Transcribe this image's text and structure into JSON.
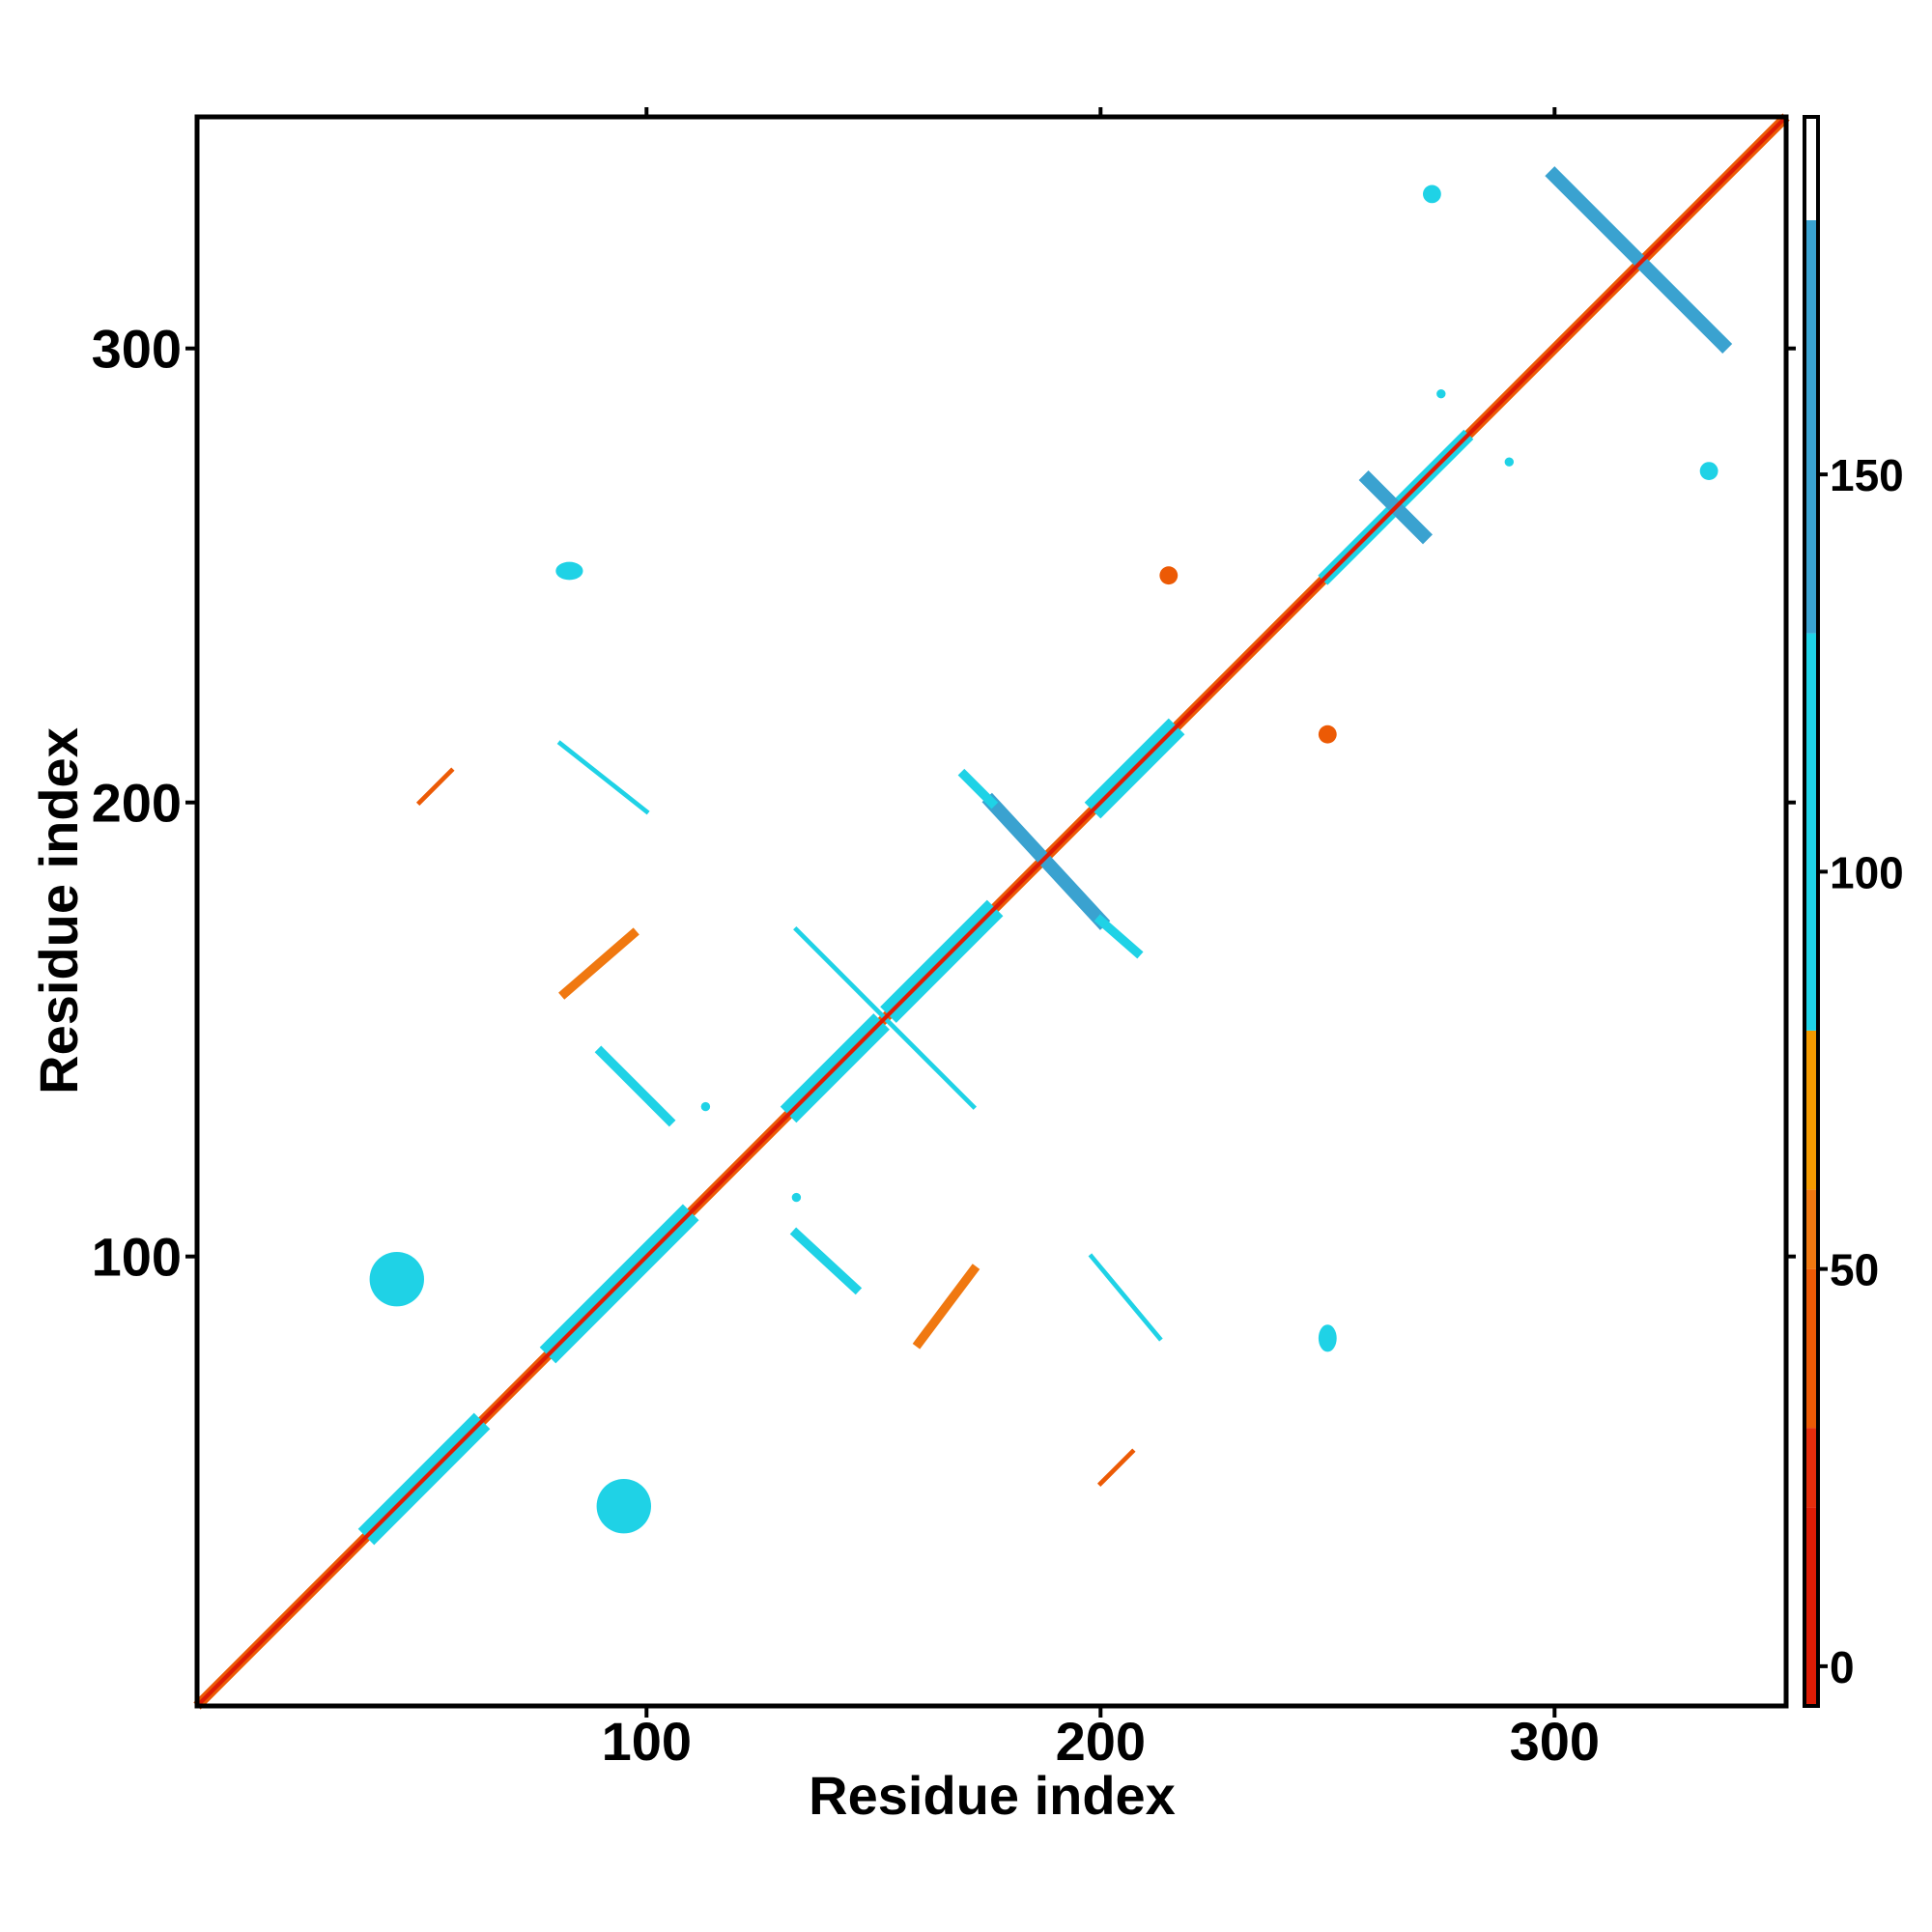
{
  "chart_data": {
    "type": "heatmap",
    "title": "",
    "xlabel": "Residue index",
    "ylabel": "Residue index",
    "xlim": [
      1,
      351
    ],
    "ylim": [
      1,
      351
    ],
    "x_ticks": [
      100,
      200,
      300
    ],
    "y_ticks": [
      100,
      200,
      300
    ],
    "grid": false,
    "colorbar": {
      "ticks": [
        0,
        50,
        100,
        150
      ],
      "range": [
        -5,
        195
      ],
      "bands": [
        {
          "from": -5,
          "to": 20,
          "color": "#dd1c05"
        },
        {
          "from": 20,
          "to": 30,
          "color": "#e52d0c"
        },
        {
          "from": 30,
          "to": 50,
          "color": "#ec5a05"
        },
        {
          "from": 50,
          "to": 60,
          "color": "#f07810"
        },
        {
          "from": 60,
          "to": 80,
          "color": "#f39a00"
        },
        {
          "from": 80,
          "to": 130,
          "color": "#1fd2e6"
        },
        {
          "from": 130,
          "to": 182,
          "color": "#3aa2d0"
        },
        {
          "from": 182,
          "to": 195,
          "color": "#ffffff"
        }
      ]
    },
    "diagonal": {
      "from": 1,
      "to": 351,
      "value": 40
    },
    "segments": [
      {
        "x0": 40,
        "y0": 40,
        "x1": 62,
        "y1": 62,
        "width": 5,
        "value": 110
      },
      {
        "x0": 80,
        "y0": 80,
        "x1": 108,
        "y1": 108,
        "width": 5,
        "value": 110
      },
      {
        "x0": 133,
        "y0": 133,
        "x1": 150,
        "y1": 150,
        "width": 5,
        "value": 110
      },
      {
        "x0": 155,
        "y0": 155,
        "x1": 175,
        "y1": 175,
        "width": 5,
        "value": 110
      },
      {
        "x0": 200,
        "y0": 200,
        "x1": 215,
        "y1": 215,
        "width": 5,
        "value": 110
      },
      {
        "x0": 250,
        "y0": 250,
        "x1": 280,
        "y1": 280,
        "width": 3,
        "value": 110
      },
      {
        "x0": 176,
        "y0": 200,
        "x1": 200,
        "y1": 174,
        "width": 3,
        "value": 150
      },
      {
        "x0": 170,
        "y0": 206,
        "x1": 176,
        "y1": 200,
        "width": 2,
        "value": 110
      },
      {
        "x0": 200,
        "y0": 174,
        "x1": 208,
        "y1": 167,
        "width": 2,
        "value": 110
      },
      {
        "x0": 300,
        "y0": 338,
        "x1": 337,
        "y1": 301,
        "width": 3,
        "value": 150
      },
      {
        "x0": 259,
        "y0": 271,
        "x1": 271,
        "y1": 259,
        "width": 3,
        "value": 130
      },
      {
        "x0": 133,
        "y0": 172,
        "x1": 172,
        "y1": 133,
        "width": 1,
        "value": 110
      },
      {
        "x0": 81,
        "y0": 213,
        "x1": 100,
        "y1": 198,
        "width": 1,
        "value": 110
      },
      {
        "x0": 90,
        "y0": 145,
        "x1": 105,
        "y1": 130,
        "width": 2,
        "value": 110
      },
      {
        "x0": 133,
        "y0": 105,
        "x1": 146,
        "y1": 93,
        "width": 2,
        "value": 110
      },
      {
        "x0": 198,
        "y0": 100,
        "x1": 213,
        "y1": 82,
        "width": 1,
        "value": 110
      },
      {
        "x0": 82,
        "y0": 158,
        "x1": 97,
        "y1": 171,
        "width": 2,
        "value": 55
      },
      {
        "x0": 160,
        "y0": 81,
        "x1": 172,
        "y1": 97,
        "width": 2,
        "value": 55
      },
      {
        "x0": 50,
        "y0": 200,
        "x1": 57,
        "y1": 207,
        "width": 1,
        "value": 40
      },
      {
        "x0": 200,
        "y0": 50,
        "x1": 207,
        "y1": 57,
        "width": 1,
        "value": 40
      }
    ],
    "blobs": [
      {
        "x": 45,
        "y": 95,
        "rx": 6,
        "ry": 6,
        "value": 110
      },
      {
        "x": 95,
        "y": 45,
        "rx": 6,
        "ry": 6,
        "value": 110
      },
      {
        "x": 83,
        "y": 251,
        "rx": 3,
        "ry": 2,
        "value": 110
      },
      {
        "x": 250,
        "y": 82,
        "rx": 2,
        "ry": 3,
        "value": 110
      },
      {
        "x": 273,
        "y": 334,
        "rx": 2,
        "ry": 2,
        "value": 110
      },
      {
        "x": 334,
        "y": 273,
        "rx": 2,
        "ry": 2,
        "value": 110
      },
      {
        "x": 275,
        "y": 290,
        "rx": 1,
        "ry": 1,
        "value": 110
      },
      {
        "x": 290,
        "y": 275,
        "rx": 1,
        "ry": 1,
        "value": 110
      },
      {
        "x": 113,
        "y": 133,
        "rx": 1,
        "ry": 1,
        "value": 110
      },
      {
        "x": 133,
        "y": 113,
        "rx": 1,
        "ry": 1,
        "value": 110
      },
      {
        "x": 250,
        "y": 215,
        "rx": 2,
        "ry": 2,
        "value": 40
      },
      {
        "x": 215,
        "y": 250,
        "rx": 2,
        "ry": 2,
        "value": 40
      }
    ]
  }
}
